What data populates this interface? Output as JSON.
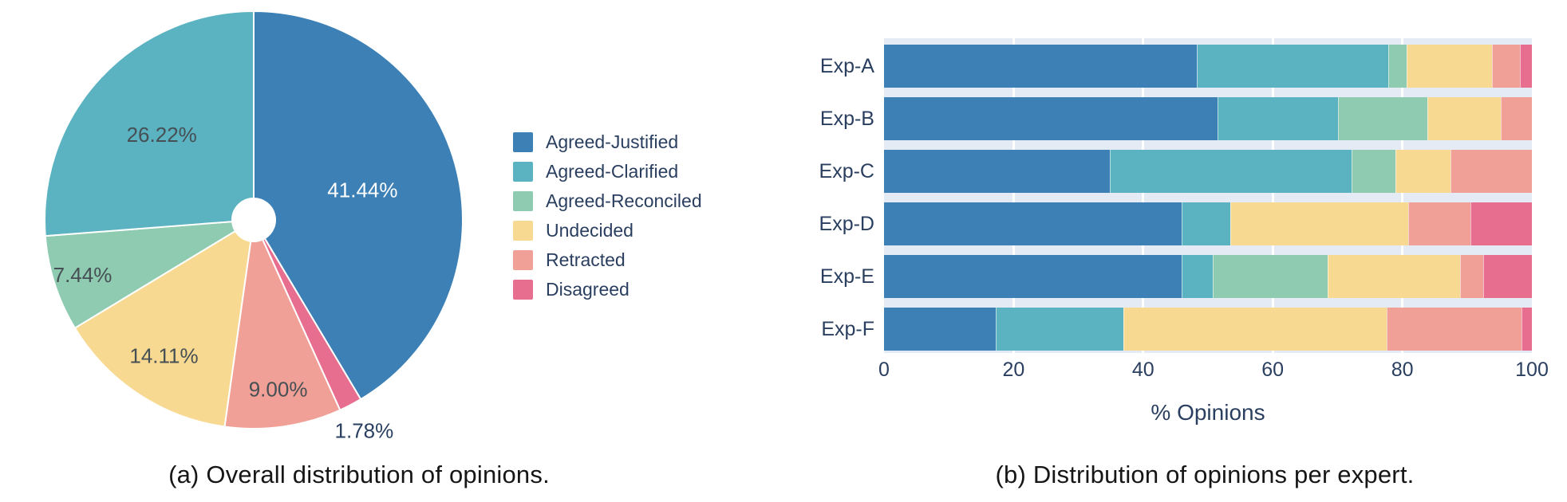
{
  "colors": {
    "blue": "#3c80b6",
    "teal": "#5bb3c2",
    "green": "#8ecbb0",
    "yellow": "#f7d992",
    "salmon": "#f0a096",
    "pink": "#e86e8f",
    "plot_bg": "#e5ebf4",
    "axis_text": "#2a3f5f",
    "inside_label_dark": "#454f54",
    "caption_text": "#161616"
  },
  "legend": {
    "items": [
      {
        "label": "Agreed-Justified",
        "color_key": "blue"
      },
      {
        "label": "Agreed-Clarified",
        "color_key": "teal"
      },
      {
        "label": "Agreed-Reconciled",
        "color_key": "green"
      },
      {
        "label": "Undecided",
        "color_key": "yellow"
      },
      {
        "label": "Retracted",
        "color_key": "salmon"
      },
      {
        "label": "Disagreed",
        "color_key": "pink"
      }
    ]
  },
  "captions": {
    "a": "(a) Overall distribution of opinions.",
    "b": "(b) Distribution of opinions per expert."
  },
  "chart_data": [
    {
      "type": "pie",
      "title": "Overall distribution of opinions",
      "direction": "clockwise",
      "start_angle_deg": 0,
      "hole_fraction": 0.103,
      "labels": [
        "Agreed-Justified",
        "Disagreed",
        "Retracted",
        "Undecided",
        "Agreed-Reconciled",
        "Agreed-Clarified"
      ],
      "values": [
        41.44,
        1.78,
        9.0,
        14.11,
        7.44,
        26.22
      ],
      "slices": [
        {
          "label": "Agreed-Justified",
          "value": 41.44,
          "display": "41.44%",
          "color_key": "blue",
          "label_r": 0.54,
          "label_style": "white",
          "outside": false
        },
        {
          "label": "Disagreed",
          "value": 1.78,
          "display": "1.78%",
          "color_key": "pink",
          "label_r": 1.14,
          "label_style": "outside",
          "outside": true
        },
        {
          "label": "Retracted",
          "value": 9.0,
          "display": "9.00%",
          "color_key": "salmon",
          "label_r": 0.82,
          "label_style": "dark",
          "outside": false
        },
        {
          "label": "Undecided",
          "value": 14.11,
          "display": "14.11%",
          "color_key": "yellow",
          "label_r": 0.78,
          "label_style": "dark",
          "outside": false
        },
        {
          "label": "Agreed-Reconciled",
          "value": 7.44,
          "display": "7.44%",
          "color_key": "green",
          "label_r": 0.86,
          "label_style": "dark",
          "outside": false
        },
        {
          "label": "Agreed-Clarified",
          "value": 26.22,
          "display": "26.22%",
          "color_key": "teal",
          "label_r": 0.6,
          "label_style": "dark",
          "outside": false
        }
      ]
    },
    {
      "type": "bar",
      "orientation": "horizontal",
      "stacked": true,
      "title": "Distribution of opinions per expert",
      "categories": [
        "Exp-A",
        "Exp-B",
        "Exp-C",
        "Exp-D",
        "Exp-E",
        "Exp-F"
      ],
      "series": [
        {
          "name": "Agreed-Justified",
          "color_key": "blue",
          "values": [
            48.3,
            51.5,
            34.8,
            45.9,
            45.9,
            17.3
          ]
        },
        {
          "name": "Agreed-Clarified",
          "color_key": "teal",
          "values": [
            29.5,
            18.6,
            37.4,
            7.6,
            4.9,
            19.7
          ]
        },
        {
          "name": "Agreed-Reconciled",
          "color_key": "green",
          "values": [
            2.9,
            13.8,
            6.7,
            0,
            17.7,
            0
          ]
        },
        {
          "name": "Undecided",
          "color_key": "yellow",
          "values": [
            13.1,
            11.3,
            8.6,
            27.4,
            20.4,
            40.6
          ]
        },
        {
          "name": "Retracted",
          "color_key": "salmon",
          "values": [
            4.4,
            4.8,
            12.5,
            9.6,
            3.6,
            20.8
          ]
        },
        {
          "name": "Disagreed",
          "color_key": "pink",
          "values": [
            1.8,
            0,
            0,
            9.5,
            7.5,
            1.6
          ]
        }
      ],
      "xlabel": "% Opinions",
      "ylabel": "",
      "xlim": [
        0,
        100
      ],
      "xticks": [
        0,
        20,
        40,
        60,
        80,
        100
      ],
      "gridlines": [
        20,
        40,
        60,
        80
      ],
      "grid": "white-vertical",
      "legend_position": "none"
    }
  ]
}
